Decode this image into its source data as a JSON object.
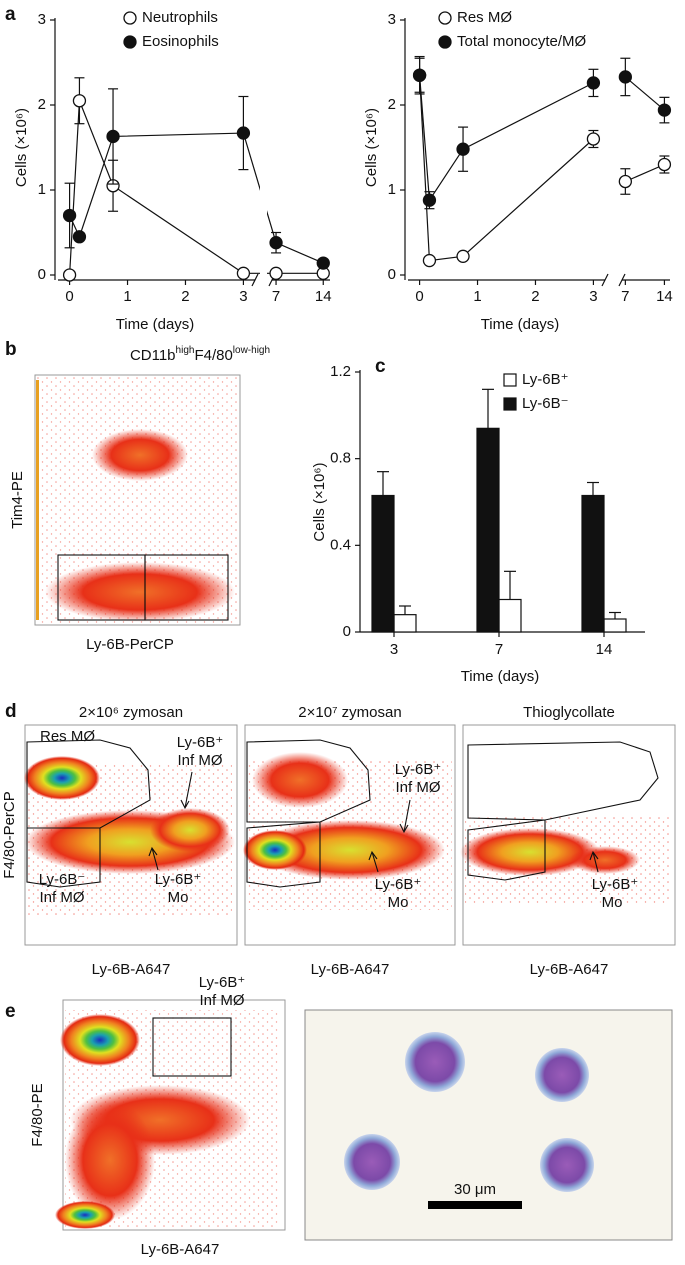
{
  "chart_data": [
    {
      "type": "line",
      "label": "a",
      "ylabel": "Cells (×10⁶)",
      "xlabel": "Time (days)",
      "x": [
        0,
        0.17,
        0.75,
        3,
        7,
        14
      ],
      "xticks": [
        0,
        1,
        2,
        3,
        7,
        14
      ],
      "xsegments": [
        [
          -0.2,
          3.2
        ],
        [
          6.4,
          15
        ]
      ],
      "connect_break": true,
      "ylim": [
        0,
        3
      ],
      "yticks": [
        0,
        1,
        2,
        3
      ],
      "series": [
        {
          "name": "Neutrophils",
          "color": "#111111",
          "fill": "#ffffff",
          "values": [
            0,
            2.05,
            1.05,
            0.02,
            0.02,
            0.02
          ],
          "errors": [
            0,
            0.27,
            0.3,
            0,
            0,
            0
          ]
        },
        {
          "name": "Eosinophils",
          "color": "#111111",
          "fill": "#111111",
          "values": [
            0.7,
            0.45,
            1.63,
            1.67,
            0.38,
            0.14
          ],
          "errors": [
            0.38,
            0,
            0.56,
            0.43,
            0.12,
            0
          ]
        }
      ]
    },
    {
      "type": "line",
      "ylabel": "Cells (×10⁶)",
      "xlabel": "Time (days)",
      "x": [
        0,
        0.17,
        0.75,
        3,
        7,
        14
      ],
      "xticks": [
        0,
        1,
        2,
        3,
        7,
        14
      ],
      "xsegments": [
        [
          -0.2,
          3.2
        ],
        [
          6.4,
          15
        ]
      ],
      "connect_break": false,
      "ylim": [
        0,
        3
      ],
      "yticks": [
        0,
        1,
        2,
        3
      ],
      "series": [
        {
          "name": "Res MØ",
          "color": "#111111",
          "fill": "#ffffff",
          "values": [
            2.35,
            0.17,
            0.22,
            1.6,
            1.1,
            1.3
          ],
          "errors": [
            0.2,
            0,
            0,
            0.1,
            0.15,
            0.1
          ]
        },
        {
          "name": "Total monocyte/MØ",
          "color": "#111111",
          "fill": "#111111",
          "values": [
            2.35,
            0.88,
            1.48,
            2.26,
            2.33,
            1.94
          ],
          "errors": [
            0.22,
            0.1,
            0.26,
            0.16,
            0.22,
            0.15
          ]
        }
      ]
    },
    {
      "type": "bar",
      "label": "c",
      "ylabel": "Cells (×10⁶)",
      "xlabel": "Time (days)",
      "categories": [
        "3",
        "7",
        "14"
      ],
      "ylim": [
        0,
        1.2
      ],
      "yticks": [
        0,
        0.4,
        0.8,
        1.2
      ],
      "series": [
        {
          "name": "Ly-6B⁺",
          "color": "#ffffff",
          "values": [
            0.08,
            0.15,
            0.06
          ],
          "errors": [
            0.04,
            0.13,
            0.03
          ]
        },
        {
          "name": "Ly-6B⁻",
          "color": "#111111",
          "values": [
            0.63,
            0.94,
            0.63
          ],
          "errors": [
            0.11,
            0.18,
            0.06
          ]
        }
      ]
    }
  ],
  "panels": {
    "b": {
      "label": "b",
      "title": [
        "CD11b",
        "high",
        "F4/80",
        "low-high"
      ],
      "xlabel": "Ly-6B-PerCP",
      "ylabel": "Tim4-PE"
    },
    "d": {
      "label": "d",
      "ylabel": "F4/80-PerCP",
      "xlabel": "Ly-6B-A647",
      "plots": [
        {
          "title": "2×10⁶ zymosan",
          "notes": [
            [
              "Res MØ"
            ],
            [
              "Ly-6B⁺",
              "Inf MØ"
            ],
            [
              "Ly-6B⁻",
              "Inf MØ"
            ],
            [
              "Ly-6B⁺",
              "Mo"
            ]
          ]
        },
        {
          "title": "2×10⁷ zymosan",
          "notes": [
            [
              "Ly-6B⁺",
              "Inf MØ"
            ],
            [
              "Ly-6B⁺",
              "Mo"
            ]
          ]
        },
        {
          "title": "Thioglycollate",
          "notes": [
            [
              "Ly-6B⁺",
              "Mo"
            ]
          ]
        }
      ]
    },
    "e": {
      "label": "e",
      "ylabel": "F4/80-PE",
      "xlabel": "Ly-6B-A647",
      "gate": [
        "Ly-6B⁺",
        "Inf MØ"
      ],
      "scale": "30 μm"
    }
  }
}
